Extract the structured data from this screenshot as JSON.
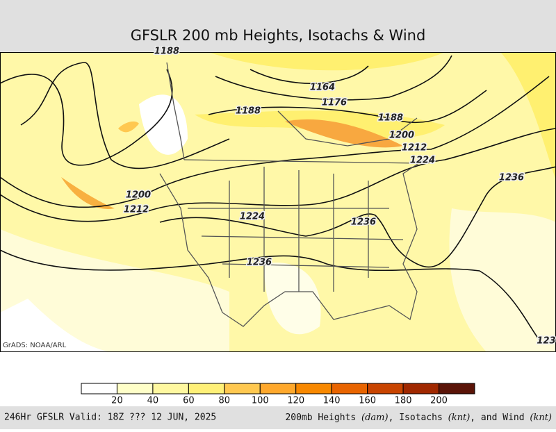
{
  "title": "GFSLR 200 mb Heights, Isotachs & Wind",
  "contour_labels": [
    1188,
    1164,
    1176,
    1188,
    1188,
    1200,
    1212,
    1224,
    1236,
    1200,
    1212,
    1224,
    1236,
    1236,
    123
  ],
  "colorbar": {
    "colors": [
      "#ffffff",
      "#ffffc8",
      "#fff8a0",
      "#fff078",
      "#ffc850",
      "#ffa82c",
      "#f88800",
      "#e86400",
      "#c84400",
      "#a02800",
      "#5a1408"
    ],
    "ticks": [
      20,
      40,
      60,
      80,
      100,
      120,
      140,
      160,
      180,
      200
    ]
  },
  "credit": "GrADS: NOAA/ARL",
  "footer": {
    "left": "246Hr GFSLR Valid: 18Z ??? 12 JUN, 2025",
    "right": [
      "200mb Heights ",
      "(dam)",
      ", Isotachs ",
      "(knt)",
      ", and Wind ",
      "(knt)"
    ]
  }
}
